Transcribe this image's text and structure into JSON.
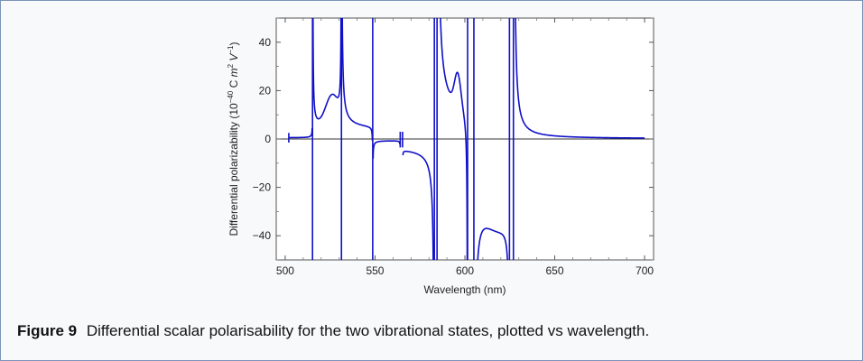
{
  "caption": {
    "label": "Figure 9",
    "text": "Differential scalar polarisability for the two vibrational states, plotted vs wavelength."
  },
  "chart_data": {
    "type": "line",
    "title": "",
    "xlabel": "Wavelength (nm)",
    "ylabel": "Differential polarizability (10^-40 C m^2 V^-1)",
    "xlim": [
      495,
      705
    ],
    "ylim": [
      -50,
      50
    ],
    "xticks": [
      500,
      550,
      600,
      650,
      700
    ],
    "yticks": [
      -40,
      -20,
      0,
      20,
      40
    ],
    "grid": false,
    "series_color": "#1010c8",
    "baseline": 0,
    "resonances_nm": [
      515.2,
      531.3,
      548.7,
      564.0,
      565.3,
      583.0,
      584.5,
      601.5,
      605.0,
      624.8,
      627.0
    ],
    "sample_points": [
      {
        "x": 502,
        "y": 1
      },
      {
        "x": 514.5,
        "y": 50
      },
      {
        "x": 518,
        "y": 5
      },
      {
        "x": 525,
        "y": 19
      },
      {
        "x": 533,
        "y": 50
      },
      {
        "x": 540,
        "y": 7
      },
      {
        "x": 547,
        "y": 2
      },
      {
        "x": 552,
        "y": -1
      },
      {
        "x": 565,
        "y": -3
      },
      {
        "x": 575,
        "y": -15
      },
      {
        "x": 581,
        "y": -50
      },
      {
        "x": 588,
        "y": 46
      },
      {
        "x": 595,
        "y": 25
      },
      {
        "x": 599,
        "y": 12
      },
      {
        "x": 600.5,
        "y": -50
      },
      {
        "x": 612,
        "y": -50
      },
      {
        "x": 619,
        "y": -31
      },
      {
        "x": 622,
        "y": -40
      },
      {
        "x": 624,
        "y": -50
      },
      {
        "x": 629,
        "y": 50
      },
      {
        "x": 640,
        "y": 8
      },
      {
        "x": 655,
        "y": 2
      },
      {
        "x": 700,
        "y": 0.2
      }
    ]
  }
}
